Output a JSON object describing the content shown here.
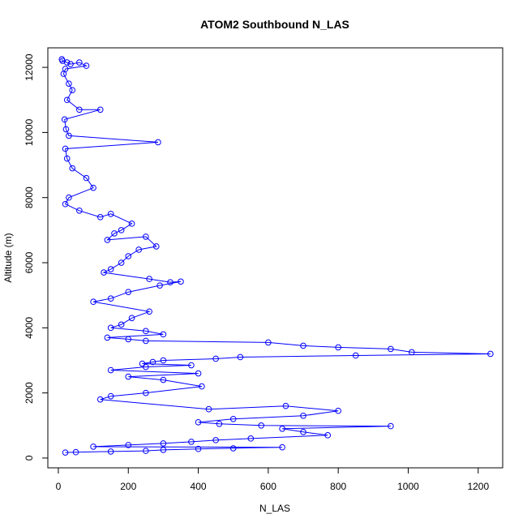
{
  "chart_data": {
    "type": "scatter",
    "title": "ATOM2 Southbound N_LAS",
    "xlabel": "N_LAS",
    "ylabel": "Altitude (m)",
    "xlim": [
      -30,
      1270
    ],
    "ylim": [
      -300,
      12600
    ],
    "x_ticks": [
      0,
      200,
      400,
      600,
      800,
      1000,
      1200
    ],
    "x_tick_labels": [
      "0",
      "200",
      "400",
      "600",
      "800",
      "1000",
      "1200"
    ],
    "y_ticks": [
      0,
      2000,
      4000,
      6000,
      8000,
      10000,
      12000
    ],
    "y_tick_labels": [
      "0",
      "2000",
      "4000",
      "6000",
      "8000",
      "10000",
      "12000"
    ],
    "grid": false,
    "legend": "none",
    "series_color": "#0000ff",
    "marker": "open-circle",
    "connected": true,
    "series": [
      {
        "x": [
          10,
          12,
          25,
          35,
          60,
          80,
          20,
          15,
          30,
          40,
          25,
          60,
          120,
          18,
          22,
          30,
          285,
          20,
          25,
          40,
          80,
          100,
          30,
          20,
          60,
          120,
          150,
          210,
          180,
          160,
          140,
          250,
          280,
          230,
          200,
          180,
          150,
          130,
          260,
          320,
          350,
          290,
          200,
          150,
          100,
          260,
          210,
          180,
          150,
          250,
          300,
          140,
          200,
          250,
          600,
          700,
          800,
          950,
          1010,
          1235,
          850,
          520,
          450,
          300,
          270,
          240,
          380,
          250,
          150,
          400,
          200,
          300,
          410,
          250,
          150,
          120,
          430,
          650,
          800,
          700,
          500,
          400,
          460,
          580,
          950,
          640,
          700,
          770,
          550,
          450,
          380,
          300,
          200,
          100,
          640,
          500,
          400,
          300,
          250,
          150,
          50,
          20
        ],
        "y": [
          12250,
          12200,
          12150,
          12100,
          12150,
          12050,
          11950,
          11800,
          11500,
          11300,
          11000,
          10700,
          10700,
          10400,
          10100,
          9900,
          9700,
          9500,
          9200,
          8900,
          8600,
          8300,
          8000,
          7800,
          7600,
          7400,
          7500,
          7200,
          7000,
          6900,
          6700,
          6800,
          6500,
          6400,
          6200,
          6000,
          5800,
          5700,
          5500,
          5400,
          5420,
          5300,
          5100,
          4900,
          4800,
          4500,
          4300,
          4100,
          4000,
          3900,
          3800,
          3700,
          3650,
          3600,
          3550,
          3450,
          3400,
          3350,
          3250,
          3200,
          3150,
          3100,
          3050,
          3000,
          2950,
          2900,
          2850,
          2800,
          2700,
          2600,
          2500,
          2400,
          2200,
          2000,
          1900,
          1800,
          1500,
          1600,
          1450,
          1300,
          1200,
          1100,
          1050,
          1000,
          980,
          900,
          800,
          700,
          600,
          550,
          500,
          450,
          400,
          350,
          330,
          300,
          280,
          250,
          220,
          200,
          180,
          170
        ]
      }
    ]
  }
}
